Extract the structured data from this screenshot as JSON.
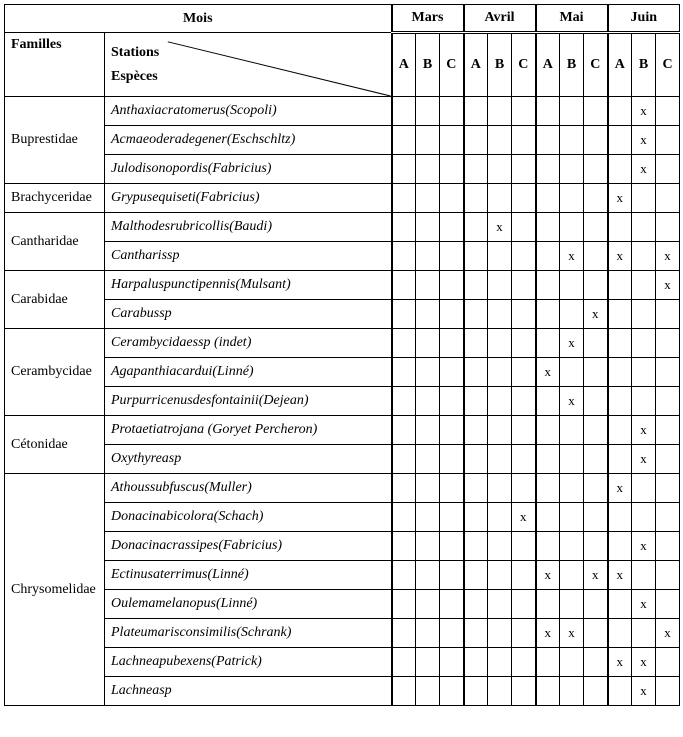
{
  "headers": {
    "mois": "Mois",
    "familles": "Familles",
    "stations": "Stations",
    "especes": "Espèces",
    "months": [
      "Mars",
      "Avril",
      "Mai",
      "Juin"
    ],
    "subcols": [
      "A",
      "B",
      "C"
    ]
  },
  "mark_char": "x",
  "families": [
    {
      "name": "Buprestidae",
      "species": [
        {
          "name": "Anthaxiacratomerus(Scopoli)",
          "marks": [
            "",
            "",
            "",
            "",
            "",
            "",
            "",
            "",
            "",
            "",
            "x",
            ""
          ]
        },
        {
          "name": "Acmaeoderadegener(Eschschltz)",
          "marks": [
            "",
            "",
            "",
            "",
            "",
            "",
            "",
            "",
            "",
            "",
            "x",
            ""
          ]
        },
        {
          "name": "Julodisonopordis(Fabricius)",
          "marks": [
            "",
            "",
            "",
            "",
            "",
            "",
            "",
            "",
            "",
            "",
            "x",
            ""
          ]
        }
      ]
    },
    {
      "name": "Brachyceridae",
      "species": [
        {
          "name": "Grypusequiseti(Fabricius)",
          "marks": [
            "",
            "",
            "",
            "",
            "",
            "",
            "",
            "",
            "",
            "x",
            "",
            ""
          ]
        }
      ]
    },
    {
      "name": "Cantharidae",
      "species": [
        {
          "name": "Malthodesrubricollis(Baudi)",
          "marks": [
            "",
            "",
            "",
            "",
            "x",
            "",
            "",
            "",
            "",
            "",
            "",
            ""
          ]
        },
        {
          "name": "Cantharissp",
          "marks": [
            "",
            "",
            "",
            "",
            "",
            "",
            "",
            "x",
            "",
            "x",
            "",
            "x"
          ]
        }
      ]
    },
    {
      "name": "Carabidae",
      "species": [
        {
          "name": "Harpaluspunctipennis(Mulsant)",
          "marks": [
            "",
            "",
            "",
            "",
            "",
            "",
            "",
            "",
            "",
            "",
            "",
            "x"
          ]
        },
        {
          "name": "Carabussp",
          "marks": [
            "",
            "",
            "",
            "",
            "",
            "",
            "",
            "",
            "x",
            "",
            "",
            ""
          ]
        }
      ]
    },
    {
      "name": "Cerambycidae",
      "species": [
        {
          "name": "Cerambycidaessp (indet)",
          "marks": [
            "",
            "",
            "",
            "",
            "",
            "",
            "",
            "x",
            "",
            "",
            "",
            ""
          ]
        },
        {
          "name": "Agapanthiacardui(Linné)",
          "marks": [
            "",
            "",
            "",
            "",
            "",
            "",
            "x",
            "",
            "",
            "",
            "",
            ""
          ]
        },
        {
          "name": "Purpurricenusdesfontainii(Dejean)",
          "marks": [
            "",
            "",
            "",
            "",
            "",
            "",
            "",
            "x",
            "",
            "",
            "",
            ""
          ]
        }
      ]
    },
    {
      "name": "Cétonidae",
      "species": [
        {
          "name": "Protaetiatrojana (Goryet Percheron)",
          "marks": [
            "",
            "",
            "",
            "",
            "",
            "",
            "",
            "",
            "",
            "",
            "x",
            ""
          ]
        },
        {
          "name": "Oxythyreasp",
          "marks": [
            "",
            "",
            "",
            "",
            "",
            "",
            "",
            "",
            "",
            "",
            "x",
            ""
          ]
        }
      ]
    },
    {
      "name": "Chrysomelidae",
      "species": [
        {
          "name": "Athoussubfuscus(Muller)",
          "marks": [
            "",
            "",
            "",
            "",
            "",
            "",
            "",
            "",
            "",
            "x",
            "",
            ""
          ]
        },
        {
          "name": "Donacinabicolora(Schach)",
          "marks": [
            "",
            "",
            "",
            "",
            "",
            "x",
            "",
            "",
            "",
            "",
            "",
            ""
          ]
        },
        {
          "name": "Donacinacrassipes(Fabricius)",
          "marks": [
            "",
            "",
            "",
            "",
            "",
            "",
            "",
            "",
            "",
            "",
            "x",
            ""
          ]
        },
        {
          "name": "Ectinusaterrimus(Linné)",
          "marks": [
            "",
            "",
            "",
            "",
            "",
            "",
            "x",
            "",
            "x",
            "x",
            "",
            ""
          ]
        },
        {
          "name": "Oulemamelanopus(Linné)",
          "marks": [
            "",
            "",
            "",
            "",
            "",
            "",
            "",
            "",
            "",
            "",
            "x",
            ""
          ]
        },
        {
          "name": "Plateumarisconsimilis(Schrank)",
          "marks": [
            "",
            "",
            "",
            "",
            "",
            "",
            "x",
            "x",
            "",
            "",
            "",
            "x"
          ]
        },
        {
          "name": "Lachneapubexens(Patrick)",
          "marks": [
            "",
            "",
            "",
            "",
            "",
            "",
            "",
            "",
            "",
            "x",
            "x",
            ""
          ]
        },
        {
          "name": "Lachneasp",
          "marks": [
            "",
            "",
            "",
            "",
            "",
            "",
            "",
            "",
            "",
            "",
            "x",
            ""
          ]
        }
      ]
    }
  ]
}
